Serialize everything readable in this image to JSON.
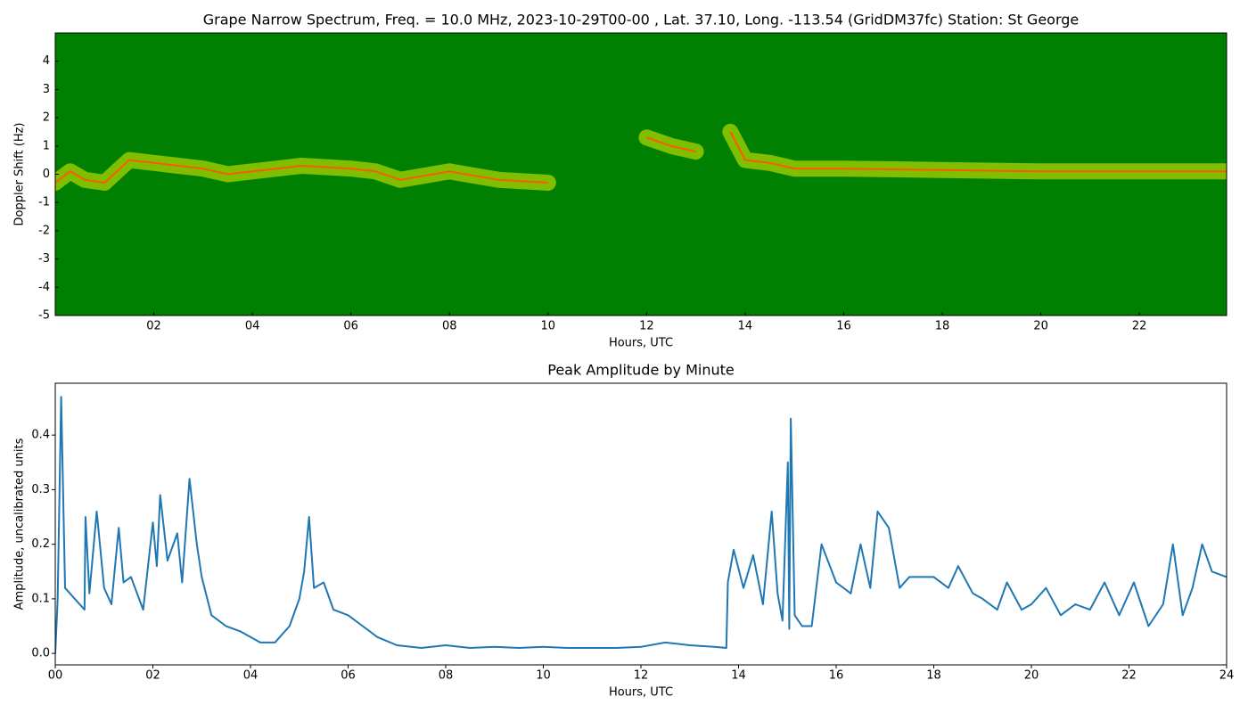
{
  "chart_data": [
    {
      "type": "spectrogram",
      "title": "Grape Narrow Spectrum, Freq. = 10.0 MHz, 2023-10-29T00-00 , Lat.  37.10, Long. -113.54 (GridDM37fc) Station: St George",
      "xlabel": "Hours, UTC",
      "ylabel": "Doppler Shift (Hz)",
      "background_color": "#008000",
      "glow_color": "#e8f000",
      "color": "#ff5a00",
      "x": [
        0,
        0.3,
        0.6,
        1.0,
        1.5,
        2.0,
        2.5,
        3.0,
        3.5,
        4.0,
        4.5,
        5.0,
        6.0,
        6.5,
        7.0,
        8.0,
        9.0,
        10.0,
        11.0,
        12.0,
        12.5,
        13.0,
        13.4,
        13.7,
        14.0,
        14.5,
        15.0,
        16.0,
        18.0,
        20.0,
        22.0,
        23.77
      ],
      "values": [
        -0.3,
        0.1,
        -0.2,
        -0.3,
        0.5,
        0.4,
        0.3,
        0.2,
        0.0,
        0.1,
        0.2,
        0.3,
        0.2,
        0.1,
        -0.2,
        0.1,
        -0.2,
        -0.3,
        null,
        1.3,
        1.0,
        0.8,
        null,
        1.5,
        0.5,
        0.4,
        0.2,
        0.2,
        0.15,
        0.1,
        0.1,
        0.1
      ],
      "xlim": [
        0,
        23.77
      ],
      "ylim": [
        -5,
        5
      ],
      "xticks": [
        {
          "value": 2,
          "label": "02"
        },
        {
          "value": 4,
          "label": "04"
        },
        {
          "value": 6,
          "label": "06"
        },
        {
          "value": 8,
          "label": "08"
        },
        {
          "value": 10,
          "label": "10"
        },
        {
          "value": 12,
          "label": "12"
        },
        {
          "value": 14,
          "label": "14"
        },
        {
          "value": 16,
          "label": "16"
        },
        {
          "value": 18,
          "label": "18"
        },
        {
          "value": 20,
          "label": "20"
        },
        {
          "value": 22,
          "label": "22"
        }
      ],
      "yticks": [
        -5,
        -4,
        -3,
        -2,
        -1,
        0,
        1,
        2,
        3,
        4
      ]
    },
    {
      "type": "line",
      "title": "Peak Amplitude by Minute",
      "xlabel": "Hours, UTC",
      "ylabel": "Amplitude, uncalibrated units",
      "color": "#1f77b4",
      "x": [
        0,
        0.05,
        0.12,
        0.2,
        0.4,
        0.6,
        0.62,
        0.7,
        0.85,
        1.0,
        1.15,
        1.3,
        1.4,
        1.55,
        1.8,
        2.0,
        2.08,
        2.15,
        2.3,
        2.5,
        2.6,
        2.75,
        2.9,
        3.0,
        3.2,
        3.5,
        3.8,
        4.0,
        4.2,
        4.5,
        4.8,
        5.0,
        5.1,
        5.2,
        5.3,
        5.5,
        5.7,
        6.0,
        6.3,
        6.6,
        7.0,
        7.5,
        8.0,
        8.5,
        9.0,
        9.5,
        10.0,
        10.5,
        11.0,
        11.5,
        12.0,
        12.5,
        13.0,
        13.5,
        13.75,
        13.78,
        13.9,
        14.1,
        14.3,
        14.5,
        14.68,
        14.8,
        14.9,
        15.01,
        15.04,
        15.07,
        15.15,
        15.3,
        15.5,
        15.7,
        16.0,
        16.3,
        16.5,
        16.7,
        16.85,
        17.08,
        17.3,
        17.5,
        18.0,
        18.3,
        18.5,
        18.8,
        19.0,
        19.3,
        19.5,
        19.8,
        20.0,
        20.3,
        20.6,
        20.9,
        21.2,
        21.5,
        21.8,
        22.1,
        22.4,
        22.7,
        22.9,
        23.1,
        23.3,
        23.5,
        23.7,
        24.0
      ],
      "values": [
        0.0,
        0.1,
        0.47,
        0.12,
        0.1,
        0.08,
        0.25,
        0.11,
        0.26,
        0.12,
        0.09,
        0.23,
        0.13,
        0.14,
        0.08,
        0.24,
        0.16,
        0.29,
        0.17,
        0.22,
        0.13,
        0.32,
        0.2,
        0.14,
        0.07,
        0.05,
        0.04,
        0.03,
        0.02,
        0.02,
        0.05,
        0.1,
        0.15,
        0.25,
        0.12,
        0.13,
        0.08,
        0.07,
        0.05,
        0.03,
        0.015,
        0.01,
        0.015,
        0.01,
        0.012,
        0.01,
        0.012,
        0.01,
        0.01,
        0.01,
        0.012,
        0.02,
        0.015,
        0.012,
        0.01,
        0.13,
        0.19,
        0.12,
        0.18,
        0.09,
        0.26,
        0.11,
        0.06,
        0.35,
        0.045,
        0.43,
        0.07,
        0.05,
        0.05,
        0.2,
        0.13,
        0.11,
        0.2,
        0.12,
        0.26,
        0.23,
        0.12,
        0.14,
        0.14,
        0.12,
        0.16,
        0.11,
        0.1,
        0.08,
        0.13,
        0.08,
        0.09,
        0.12,
        0.07,
        0.09,
        0.08,
        0.13,
        0.07,
        0.13,
        0.05,
        0.09,
        0.2,
        0.07,
        0.12,
        0.2,
        0.15,
        0.14
      ],
      "xlim": [
        0,
        24
      ],
      "ylim": [
        -0.021,
        0.495
      ],
      "xticks": [
        {
          "value": 0,
          "label": "00"
        },
        {
          "value": 2,
          "label": "02"
        },
        {
          "value": 4,
          "label": "04"
        },
        {
          "value": 6,
          "label": "06"
        },
        {
          "value": 8,
          "label": "08"
        },
        {
          "value": 10,
          "label": "10"
        },
        {
          "value": 12,
          "label": "12"
        },
        {
          "value": 14,
          "label": "14"
        },
        {
          "value": 16,
          "label": "16"
        },
        {
          "value": 18,
          "label": "18"
        },
        {
          "value": 20,
          "label": "20"
        },
        {
          "value": 22,
          "label": "22"
        },
        {
          "value": 24,
          "label": "24"
        }
      ],
      "yticks": [
        {
          "value": 0,
          "label": "0.0"
        },
        {
          "value": 0.1,
          "label": "0.1"
        },
        {
          "value": 0.2,
          "label": "0.2"
        },
        {
          "value": 0.3,
          "label": "0.3"
        },
        {
          "value": 0.4,
          "label": "0.4"
        }
      ]
    }
  ]
}
